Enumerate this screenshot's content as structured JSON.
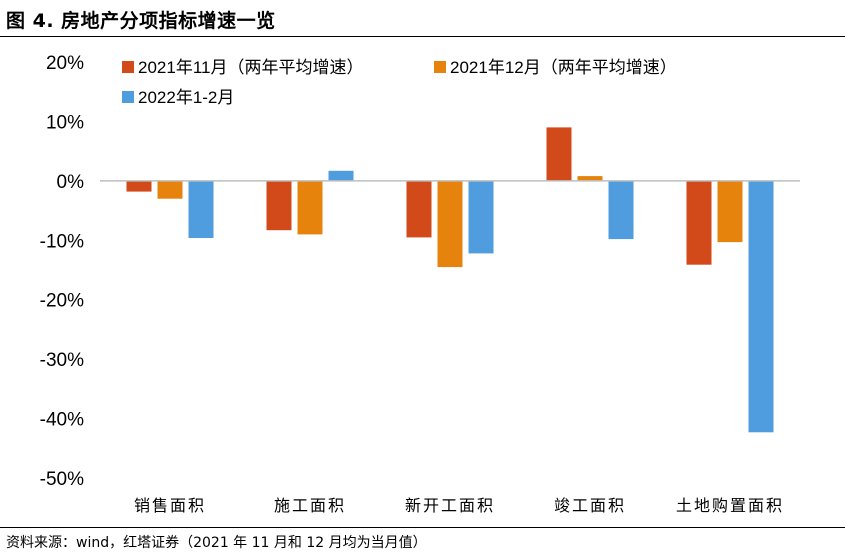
{
  "header": {
    "title": "图 4. 房地产分项指标增速一览"
  },
  "footer": {
    "source": "资料来源：wind，红塔证券（2021 年 11 月和 12 月均为当月值）"
  },
  "chart_data": {
    "type": "bar",
    "title": "房地产分项指标增速一览",
    "xlabel": "",
    "ylabel": "",
    "categories": [
      "销售面积",
      "施工面积",
      "新开工面积",
      "竣工面积",
      "土地购置面积"
    ],
    "series": [
      {
        "name": "2021年11月（两年平均增速）",
        "color": "#D24A1A",
        "values": [
          -1.8,
          -8.3,
          -9.5,
          9.0,
          -14.1
        ]
      },
      {
        "name": "2021年12月（两年平均增速）",
        "color": "#E5830D",
        "values": [
          -3.0,
          -9.0,
          -14.5,
          0.8,
          -10.3
        ]
      },
      {
        "name": "2022年1-2月",
        "color": "#4F9DDE",
        "values": [
          -9.6,
          1.7,
          -12.2,
          -9.8,
          -42.3
        ]
      }
    ],
    "ylim": [
      -50,
      20
    ],
    "yticks": [
      20,
      10,
      0,
      -10,
      -20,
      -30,
      -40,
      -50
    ],
    "ytick_labels": [
      "20%",
      "10%",
      "0%",
      "-10%",
      "-20%",
      "-30%",
      "-40%",
      "-50%"
    ],
    "grid": false,
    "legend_position": "top-left"
  }
}
